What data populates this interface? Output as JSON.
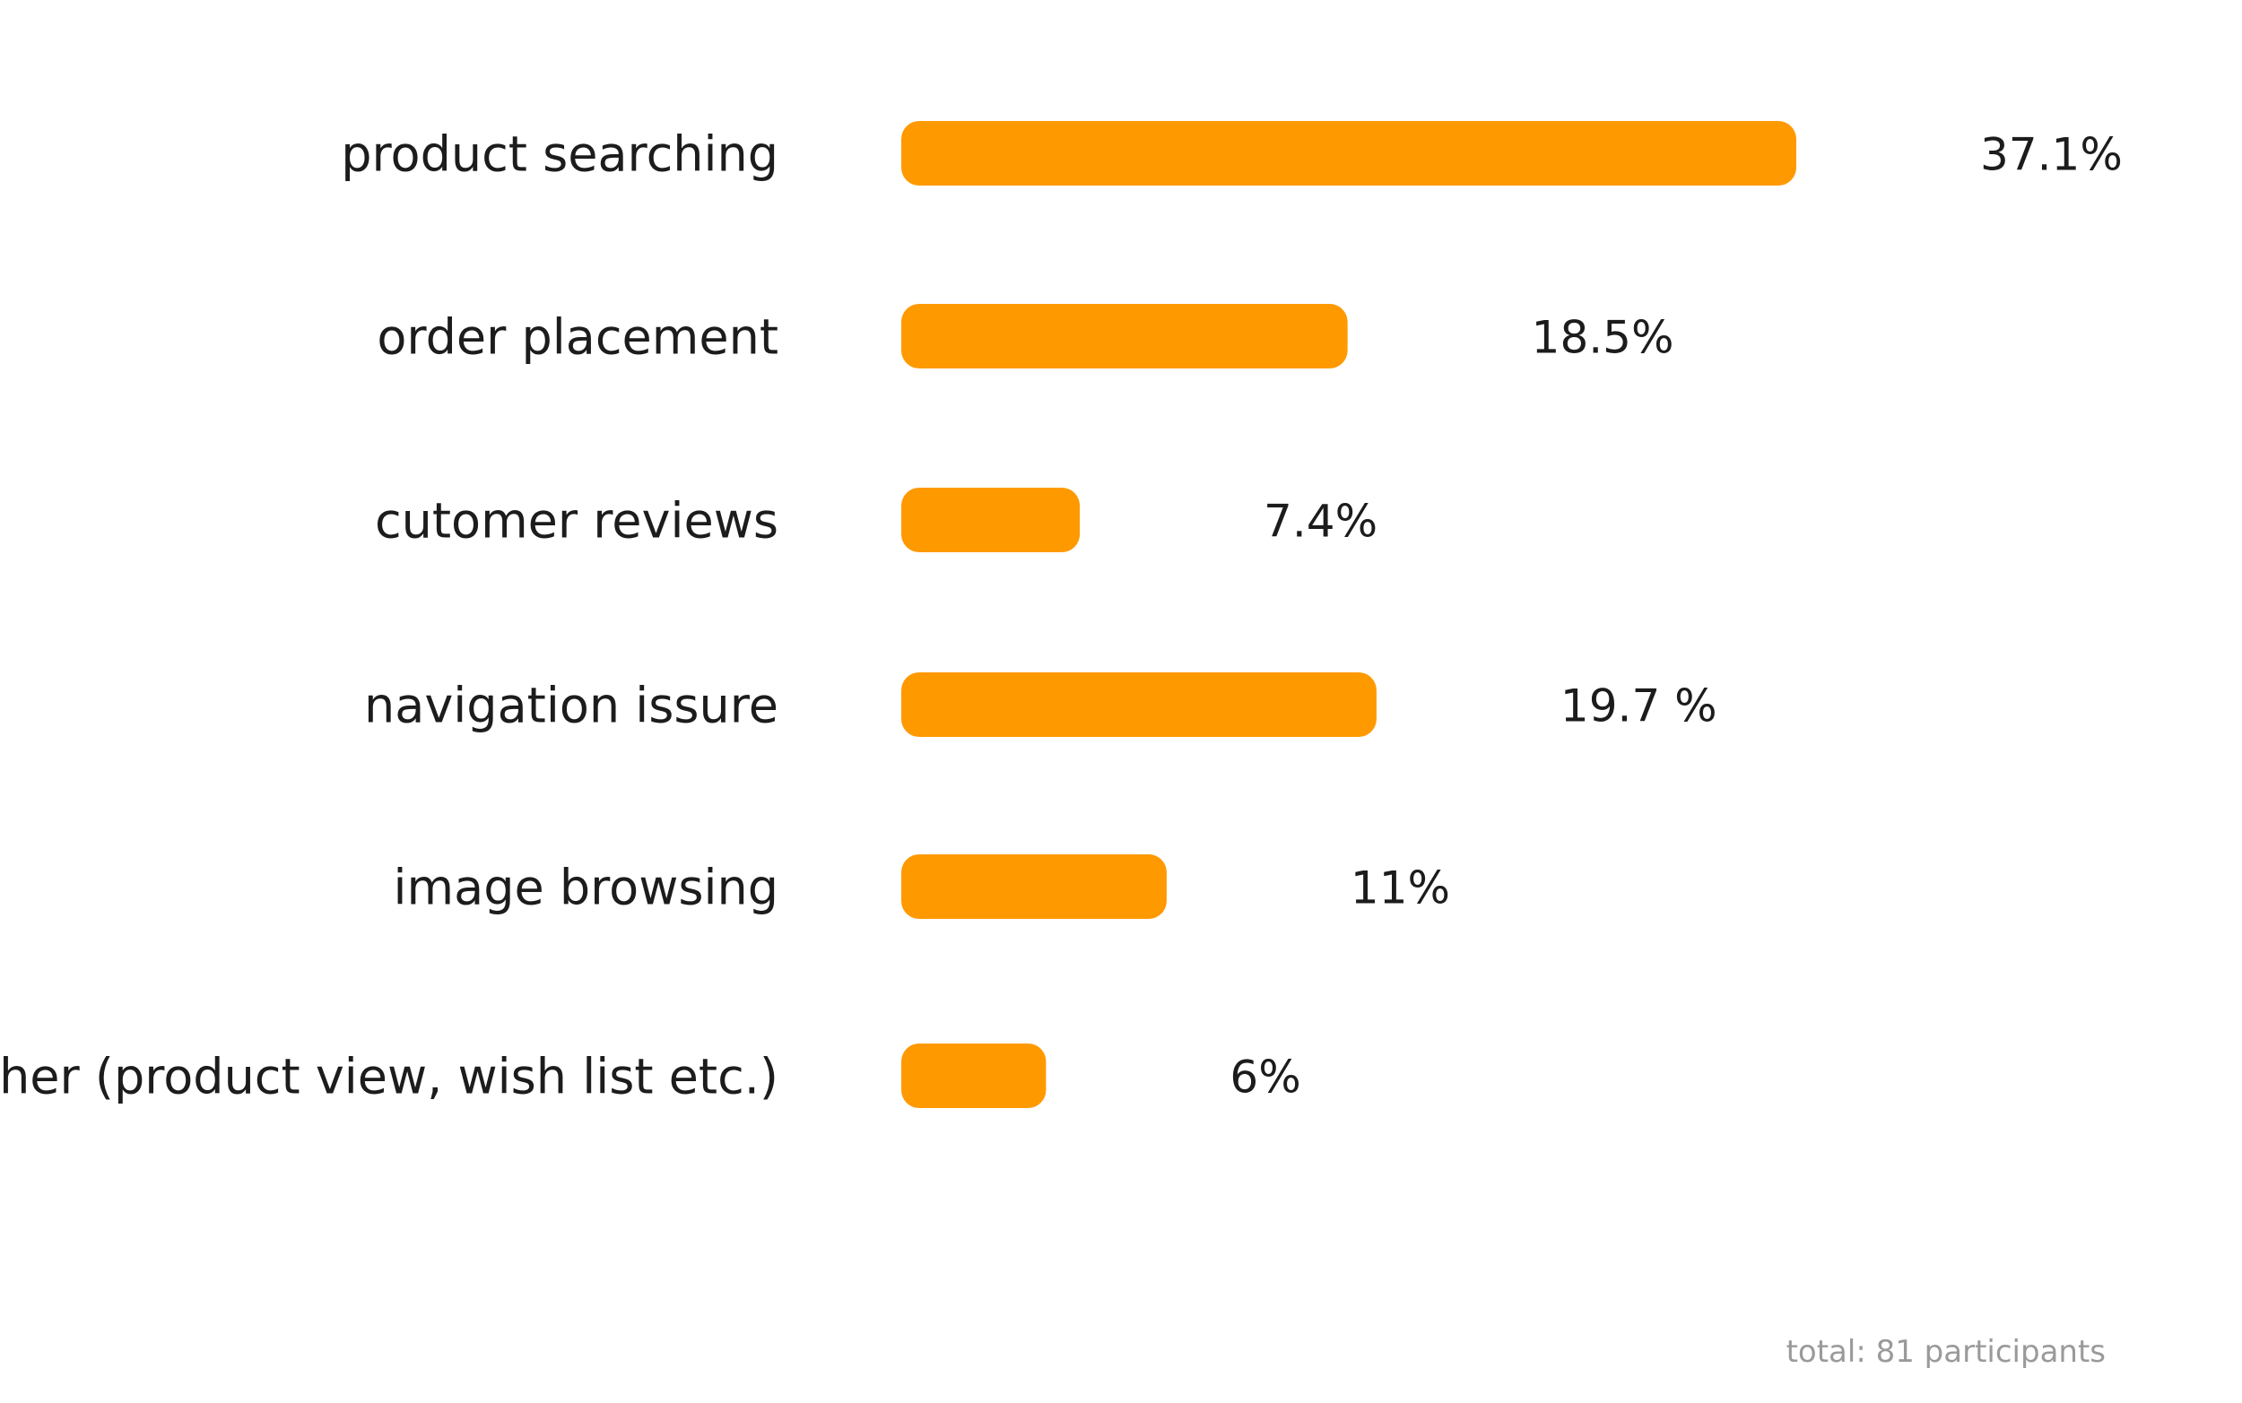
{
  "chart_data": {
    "type": "bar",
    "orientation": "horizontal",
    "categories": [
      "product searching",
      "order placement",
      "cutomer reviews",
      "navigation issure",
      "image browsing",
      "other (product view, wish list etc.)"
    ],
    "values": [
      37.1,
      18.5,
      7.4,
      19.7,
      11,
      6
    ],
    "value_labels": [
      "37.1%",
      "18.5%",
      "7.4%",
      "19.7 %",
      "11%",
      "6%"
    ],
    "bar_color": "#FF9900",
    "grid": false,
    "legend": "none"
  },
  "footnote": "total: 81 participants"
}
